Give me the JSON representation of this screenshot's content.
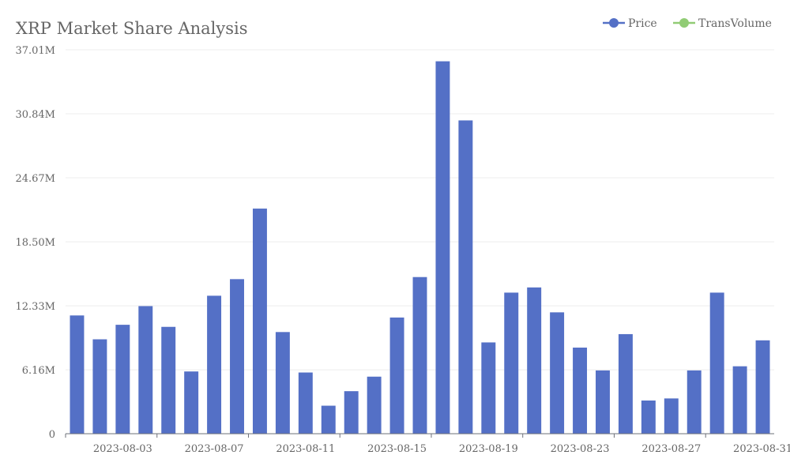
{
  "chart_data": {
    "type": "bar",
    "title": "XRP Market Share Analysis",
    "legend": [
      {
        "name": "Price",
        "color": "#5470c6"
      },
      {
        "name": "TransVolume",
        "color": "#91cc75"
      }
    ],
    "legend_position": "top-right",
    "ylim": [
      0,
      37.01
    ],
    "y_ticks": [
      "0",
      "6.16M",
      "12.33M",
      "18.50M",
      "24.67M",
      "30.84M",
      "37.01M"
    ],
    "y_tick_values": [
      0,
      6.16,
      12.33,
      18.5,
      24.67,
      30.84,
      37.01
    ],
    "x_tick_labels": [
      "2023-08-03",
      "2023-08-07",
      "2023-08-11",
      "2023-08-15",
      "2023-08-19",
      "2023-08-23",
      "2023-08-27",
      "2023-08-31"
    ],
    "categories": [
      "2023-08-01",
      "2023-08-02",
      "2023-08-03",
      "2023-08-04",
      "2023-08-05",
      "2023-08-06",
      "2023-08-07",
      "2023-08-08",
      "2023-08-09",
      "2023-08-10",
      "2023-08-11",
      "2023-08-12",
      "2023-08-13",
      "2023-08-14",
      "2023-08-15",
      "2023-08-16",
      "2023-08-17",
      "2023-08-18",
      "2023-08-19",
      "2023-08-20",
      "2023-08-21",
      "2023-08-22",
      "2023-08-23",
      "2023-08-24",
      "2023-08-25",
      "2023-08-26",
      "2023-08-27",
      "2023-08-28",
      "2023-08-29",
      "2023-08-30",
      "2023-08-31"
    ],
    "series": [
      {
        "name": "Price",
        "color": "#5470c6",
        "values": [
          11.4,
          9.1,
          10.5,
          12.3,
          10.3,
          6.0,
          13.3,
          14.9,
          21.7,
          9.8,
          5.9,
          2.7,
          4.1,
          5.5,
          11.2,
          15.1,
          35.9,
          30.2,
          8.8,
          13.6,
          14.1,
          11.7,
          8.3,
          6.1,
          9.6,
          3.2,
          3.4,
          6.1,
          13.6,
          6.5,
          9.0
        ]
      }
    ]
  }
}
